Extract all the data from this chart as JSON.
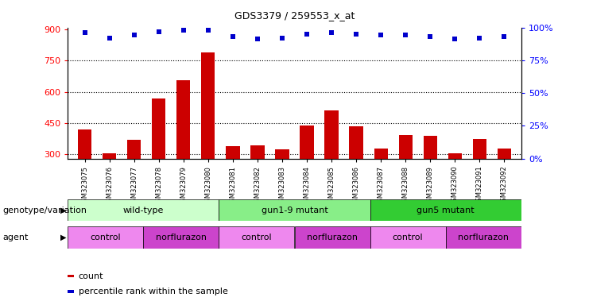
{
  "title": "GDS3379 / 259553_x_at",
  "samples": [
    "GSM323075",
    "GSM323076",
    "GSM323077",
    "GSM323078",
    "GSM323079",
    "GSM323080",
    "GSM323081",
    "GSM323082",
    "GSM323083",
    "GSM323084",
    "GSM323085",
    "GSM323086",
    "GSM323087",
    "GSM323088",
    "GSM323089",
    "GSM323090",
    "GSM323091",
    "GSM323092"
  ],
  "counts": [
    420,
    305,
    370,
    570,
    655,
    790,
    340,
    345,
    325,
    440,
    510,
    435,
    330,
    395,
    390,
    305,
    375,
    330
  ],
  "percentile_ranks": [
    96,
    92,
    94,
    97,
    98,
    98,
    93,
    91,
    92,
    95,
    96,
    95,
    94,
    94,
    93,
    91,
    92,
    93
  ],
  "ylim_left": [
    280,
    910
  ],
  "yticks_left": [
    300,
    450,
    600,
    750,
    900
  ],
  "ylim_right": [
    0,
    100
  ],
  "yticks_right": [
    0,
    25,
    50,
    75,
    100
  ],
  "bar_color": "#cc0000",
  "dot_color": "#0000cc",
  "plot_bg": "#ffffff",
  "genotype_groups": [
    {
      "label": "wild-type",
      "start": 0,
      "end": 6,
      "color": "#ccffcc"
    },
    {
      "label": "gun1-9 mutant",
      "start": 6,
      "end": 12,
      "color": "#88ee88"
    },
    {
      "label": "gun5 mutant",
      "start": 12,
      "end": 18,
      "color": "#33cc33"
    }
  ],
  "agent_groups": [
    {
      "label": "control",
      "start": 0,
      "end": 3,
      "color": "#ee88ee"
    },
    {
      "label": "norflurazon",
      "start": 3,
      "end": 6,
      "color": "#cc44cc"
    },
    {
      "label": "control",
      "start": 6,
      "end": 9,
      "color": "#ee88ee"
    },
    {
      "label": "norflurazon",
      "start": 9,
      "end": 12,
      "color": "#cc44cc"
    },
    {
      "label": "control",
      "start": 12,
      "end": 15,
      "color": "#ee88ee"
    },
    {
      "label": "norflurazon",
      "start": 15,
      "end": 18,
      "color": "#cc44cc"
    }
  ],
  "genotype_row_label": "genotype/variation",
  "agent_row_label": "agent",
  "legend_count_label": "count",
  "legend_pct_label": "percentile rank within the sample"
}
